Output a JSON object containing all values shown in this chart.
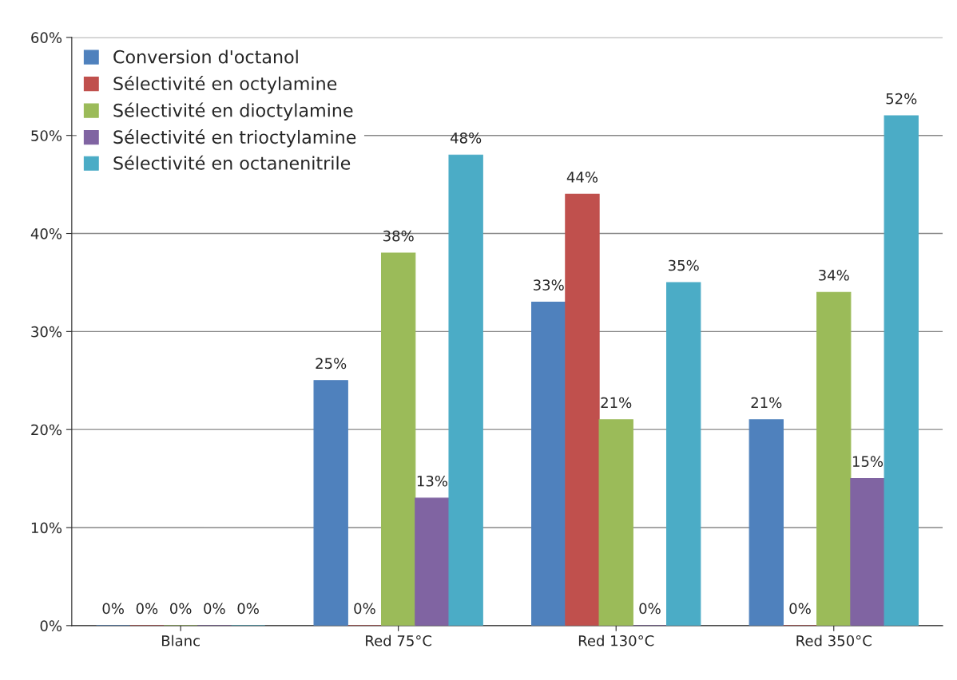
{
  "chart_data": {
    "type": "bar",
    "categories": [
      "Blanc",
      "Red 75°C",
      "Red 130°C",
      "Red 350°C"
    ],
    "series": [
      {
        "name": "Conversion d'octanol",
        "color": "#4f81bd",
        "values": [
          0,
          25,
          33,
          21
        ],
        "value_labels": [
          "0%",
          "25%",
          "33%",
          "21%"
        ]
      },
      {
        "name": "Sélectivité en octylamine",
        "color": "#c0504d",
        "values": [
          0,
          0,
          44,
          0
        ],
        "value_labels": [
          "0%",
          "0%",
          "44%",
          "0%"
        ]
      },
      {
        "name": "Sélectivité en dioctylamine",
        "color": "#9bbb59",
        "values": [
          0,
          38,
          21,
          34
        ],
        "value_labels": [
          "0%",
          "38%",
          "21%",
          "34%"
        ]
      },
      {
        "name": "Sélectivité en trioctylamine",
        "color": "#8064a2",
        "values": [
          0,
          13,
          0,
          15
        ],
        "value_labels": [
          "0%",
          "13%",
          "0%",
          "15%"
        ]
      },
      {
        "name": "Sélectivité en octanenitrile",
        "color": "#4bacc6",
        "values": [
          0,
          48,
          35,
          52
        ],
        "value_labels": [
          "0%",
          "48%",
          "35%",
          "52%"
        ]
      }
    ],
    "ylim": [
      0,
      60
    ],
    "yticks": [
      {
        "value": 0,
        "label": "0%"
      },
      {
        "value": 10,
        "label": "10%"
      },
      {
        "value": 20,
        "label": "20%"
      },
      {
        "value": 30,
        "label": "30%"
      },
      {
        "value": 40,
        "label": "40%"
      },
      {
        "value": 50,
        "label": "50%"
      },
      {
        "value": 60,
        "label": "60%"
      }
    ],
    "grid": "y",
    "legend": "top left"
  }
}
